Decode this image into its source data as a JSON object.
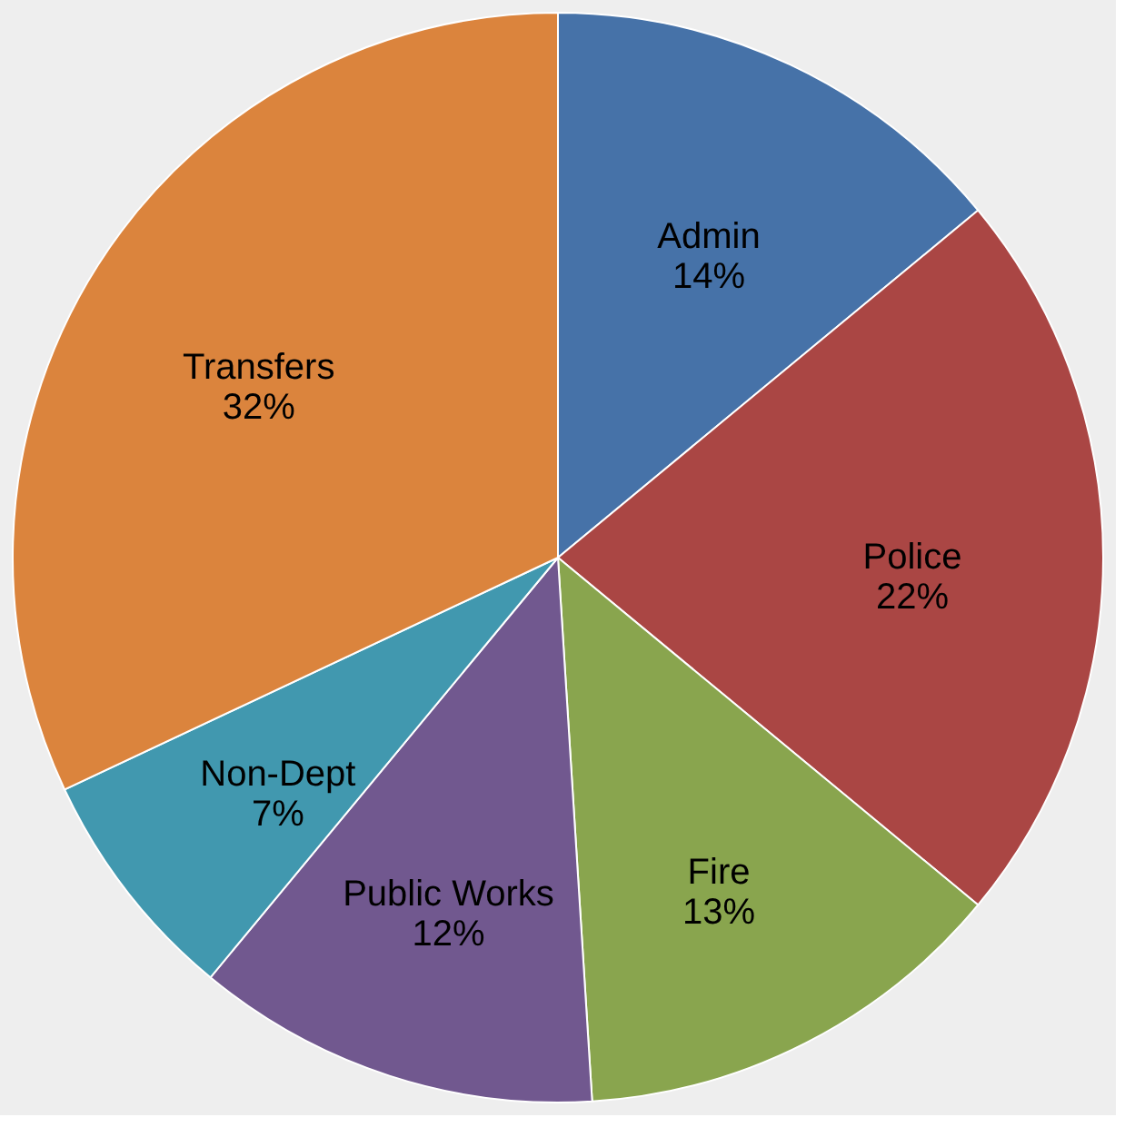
{
  "chart_data": {
    "type": "pie",
    "categories": [
      "Admin",
      "Police",
      "Fire",
      "Public Works",
      "Non-Dept",
      "Transfers"
    ],
    "values": [
      14,
      22,
      13,
      12,
      7,
      32
    ],
    "value_labels": [
      "14%",
      "22%",
      "13%",
      "12%",
      "7%",
      "32%"
    ],
    "colors": [
      "#4672a8",
      "#aa4644",
      "#89a54e",
      "#71588f",
      "#4198af",
      "#db843d"
    ],
    "legend": false
  }
}
